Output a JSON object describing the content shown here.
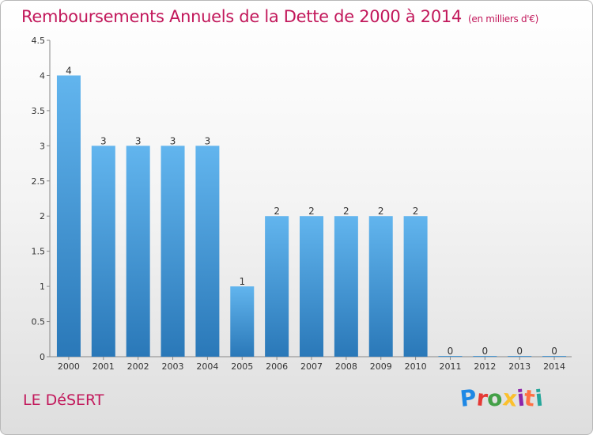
{
  "title": "Remboursements Annuels de la Dette de 2000 à 2014",
  "subtitle": "(en milliers d'€)",
  "commune": "LE DéSERT",
  "logo": {
    "text": "Proxiti",
    "colors": [
      "#1e88e5",
      "#e53935",
      "#43a047",
      "#fbc02d",
      "#8e24aa",
      "#ff7043",
      "#26a69a"
    ]
  },
  "colors": {
    "bar_top": "#62b5ee",
    "bar_bottom": "#2a78b8",
    "title": "#c2185b"
  },
  "chart_data": {
    "type": "bar",
    "categories": [
      "2000",
      "2001",
      "2002",
      "2003",
      "2004",
      "2005",
      "2006",
      "2007",
      "2008",
      "2009",
      "2010",
      "2011",
      "2012",
      "2013",
      "2014"
    ],
    "values": [
      4,
      3,
      3,
      3,
      3,
      1,
      2,
      2,
      2,
      2,
      2,
      0,
      0,
      0,
      0
    ],
    "data_labels": [
      "4",
      "3",
      "3",
      "3",
      "3",
      "1",
      "2",
      "2",
      "2",
      "2",
      "2",
      "0",
      "0",
      "0",
      "0"
    ],
    "yticks": [
      "0",
      "0.5",
      "1",
      "1.5",
      "2",
      "2.5",
      "3",
      "3.5",
      "4",
      "4.5"
    ],
    "ylim": [
      0,
      4.5
    ],
    "title": "Remboursements Annuels de la Dette de 2000 à 2014",
    "xlabel": "",
    "ylabel": "",
    "grid": false,
    "legend": "none"
  }
}
